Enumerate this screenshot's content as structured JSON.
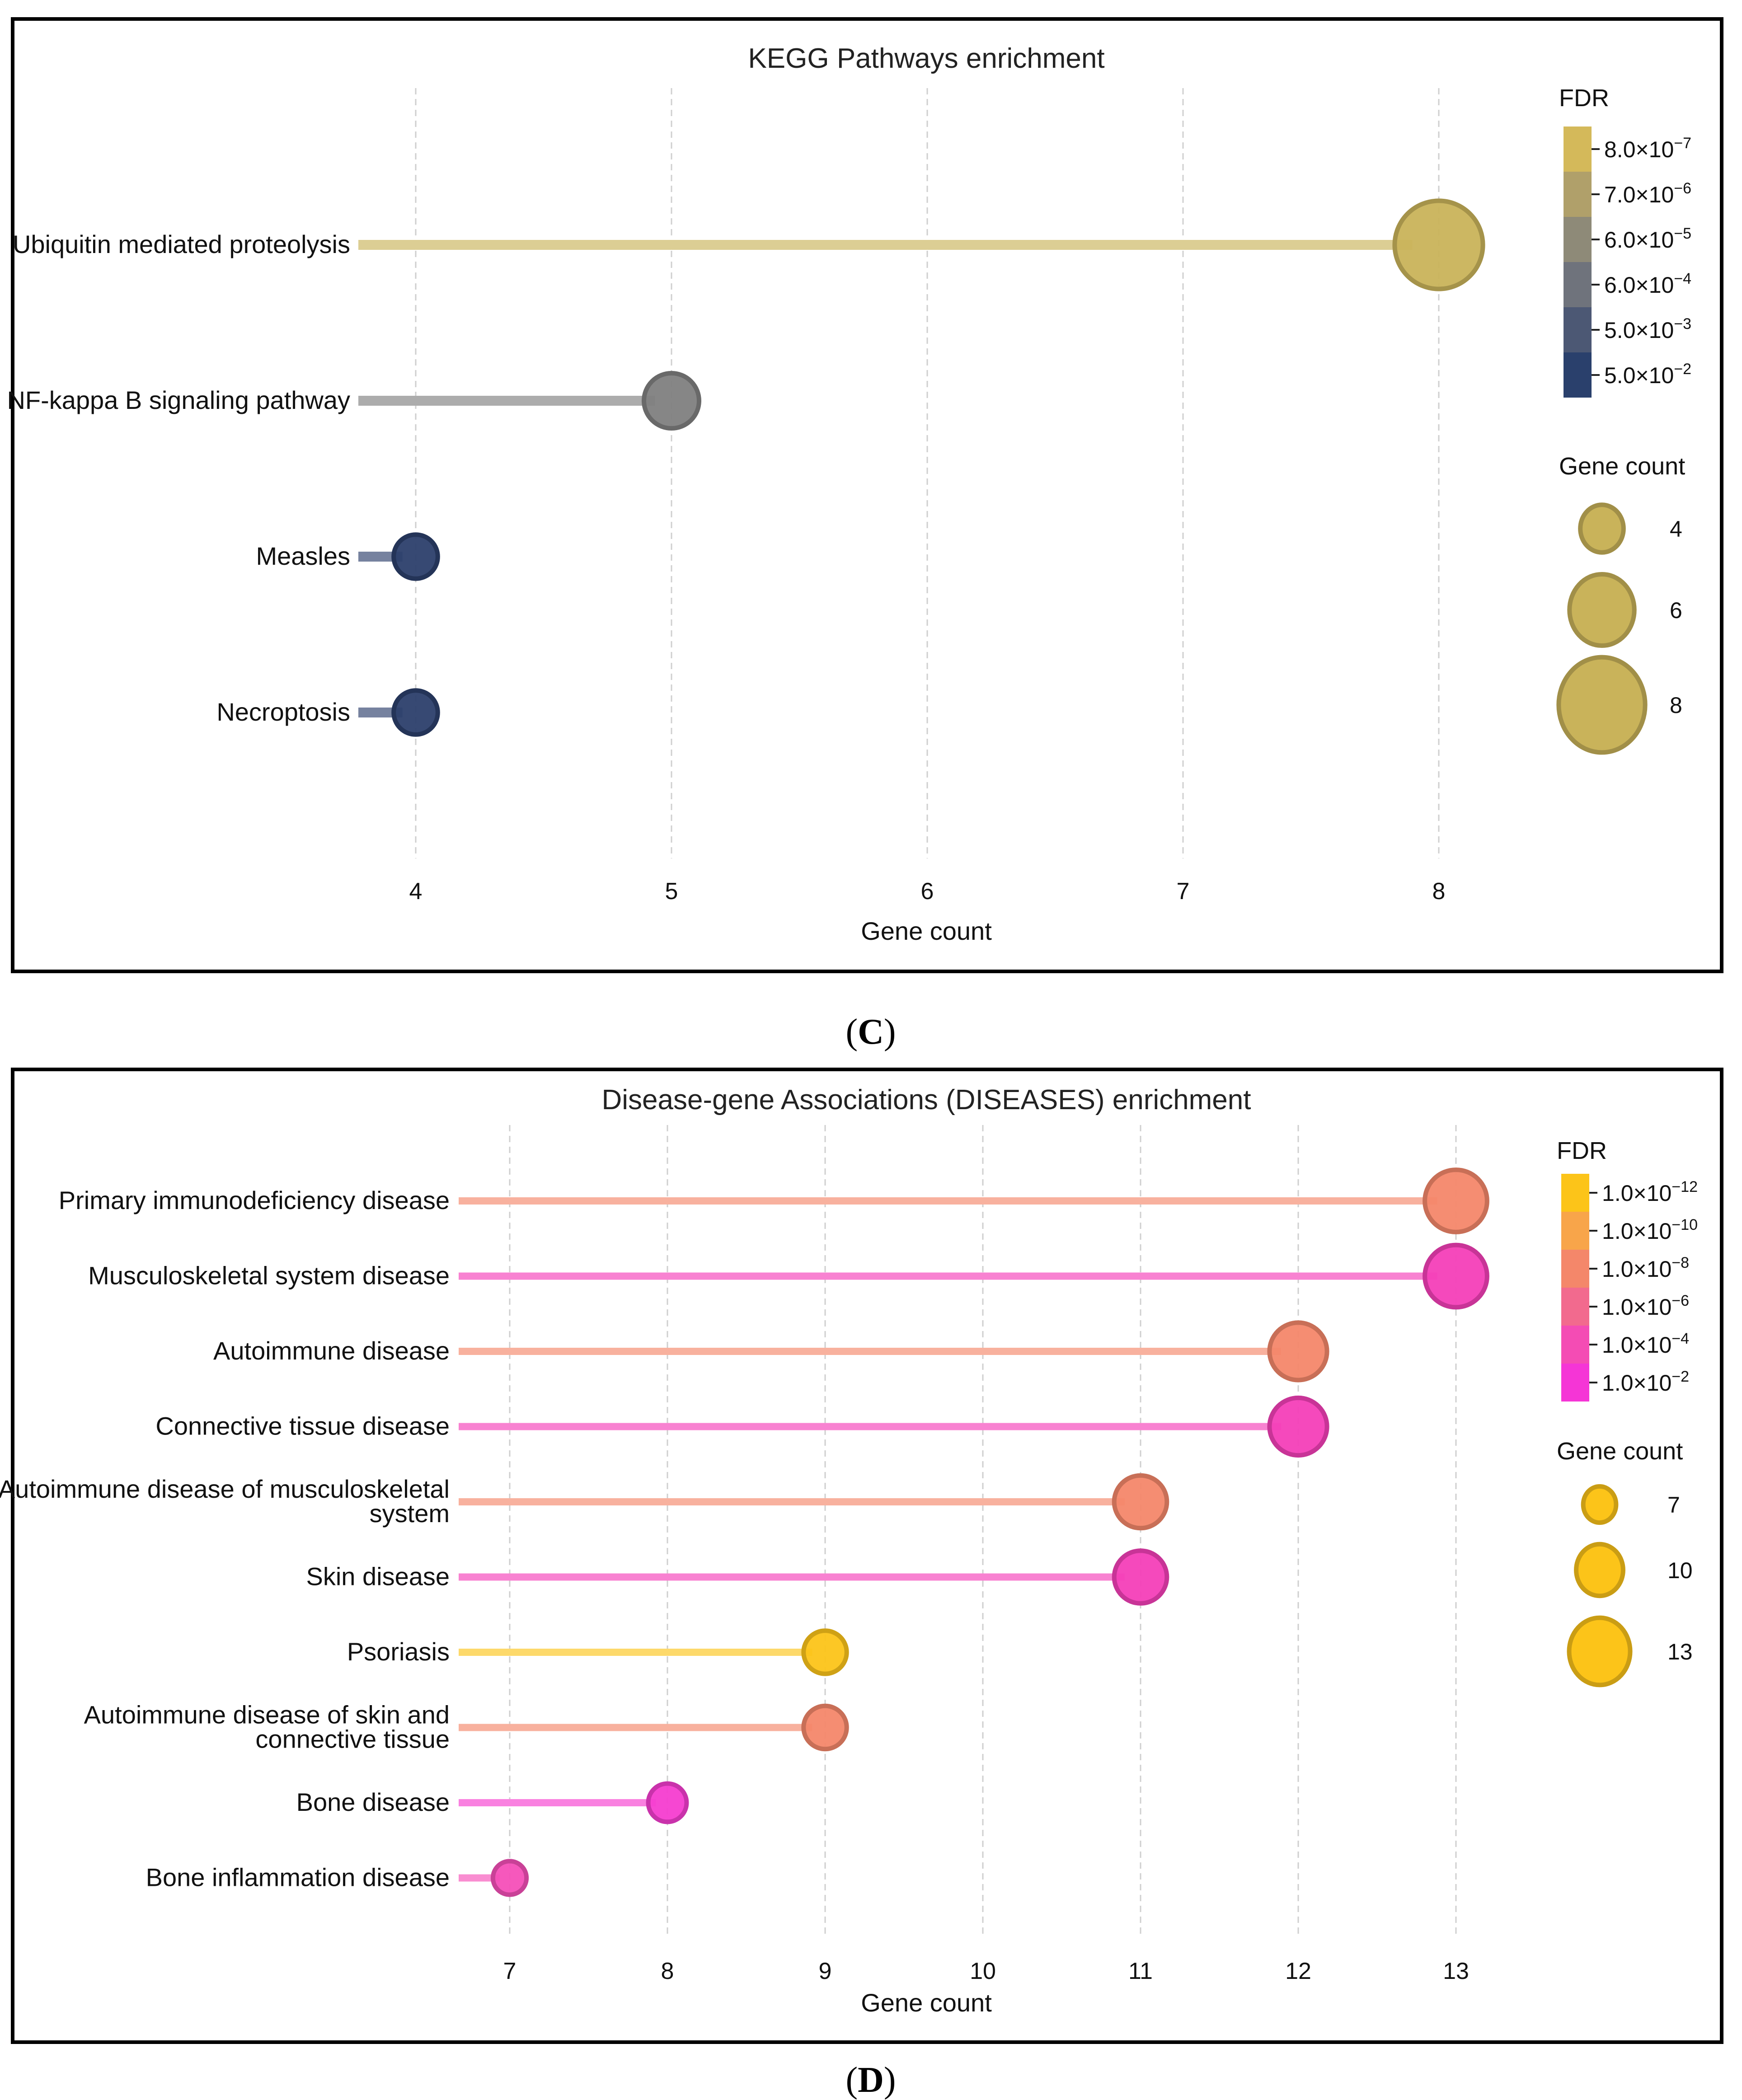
{
  "panels": [
    {
      "letter": "C",
      "chart_data": {
        "type": "lollipop",
        "title": "KEGG Pathways enrichment",
        "xlabel": "Gene count",
        "ylabel": "",
        "xlim": [
          3.9,
          8.3
        ],
        "x_ticks": [
          4,
          5,
          6,
          7,
          8
        ],
        "grid": true,
        "categories": [
          "Ubiquitin mediated proteolysis",
          "NF-kappa B signaling pathway",
          "Measles",
          "Necroptosis"
        ],
        "values": [
          8,
          5,
          4,
          4
        ],
        "colors": [
          "#c9b35a",
          "#808080",
          "#2c3f6b",
          "#2c3f6b"
        ],
        "legend_fdr": {
          "title": "FDR",
          "position": "top-right",
          "labels": [
            {
              "m": "8.0",
              "e": "−7"
            },
            {
              "m": "7.0",
              "e": "−6"
            },
            {
              "m": "6.0",
              "e": "−5"
            },
            {
              "m": "6.0",
              "e": "−4"
            },
            {
              "m": "5.0",
              "e": "−3"
            },
            {
              "m": "5.0",
              "e": "−2"
            }
          ],
          "colors": [
            "#d4b95a",
            "#b0a06a",
            "#8e8a78",
            "#6f737c",
            "#4c5874",
            "#2a406c"
          ]
        },
        "legend_size": {
          "title": "Gene count",
          "values": [
            4,
            6,
            8
          ],
          "color": "#c9b35a"
        }
      }
    },
    {
      "letter": "D",
      "chart_data": {
        "type": "lollipop",
        "title": "Disease-gene Associations (DISEASES) enrichment",
        "xlabel": "Gene count",
        "ylabel": "",
        "xlim": [
          6.7,
          13.4
        ],
        "x_ticks": [
          7,
          8,
          9,
          10,
          11,
          12,
          13
        ],
        "grid": true,
        "categories": [
          [
            "Primary immunodeficiency disease"
          ],
          [
            "Musculoskeletal system disease"
          ],
          [
            "Autoimmune disease"
          ],
          [
            "Connective tissue disease"
          ],
          [
            "Autoimmune disease of musculoskeletal",
            "system"
          ],
          [
            "Skin disease"
          ],
          [
            "Psoriasis"
          ],
          [
            "Autoimmune disease of skin and",
            "connective tissue"
          ],
          [
            "Bone disease"
          ],
          [
            "Bone inflammation disease"
          ]
        ],
        "values": [
          13,
          13,
          12,
          12,
          11,
          11,
          9,
          9,
          8,
          7
        ],
        "colors": [
          "#f4876a",
          "#f43fb8",
          "#f4876a",
          "#f43fb8",
          "#f4876a",
          "#f43fb8",
          "#fcc419",
          "#f4876a",
          "#f53dd0",
          "#f54fb8"
        ],
        "legend_fdr": {
          "title": "FDR",
          "position": "top-right",
          "labels": [
            {
              "m": "1.0",
              "e": "−12"
            },
            {
              "m": "1.0",
              "e": "−10"
            },
            {
              "m": "1.0",
              "e": "−8"
            },
            {
              "m": "1.0",
              "e": "−6"
            },
            {
              "m": "1.0",
              "e": "−4"
            },
            {
              "m": "1.0",
              "e": "−2"
            }
          ],
          "colors": [
            "#fcc419",
            "#f8a54a",
            "#f4876a",
            "#f26a8e",
            "#f44cb4",
            "#f535d6"
          ]
        },
        "legend_size": {
          "title": "Gene count",
          "values": [
            7,
            10,
            13
          ],
          "color": "#fcc419"
        }
      }
    }
  ]
}
